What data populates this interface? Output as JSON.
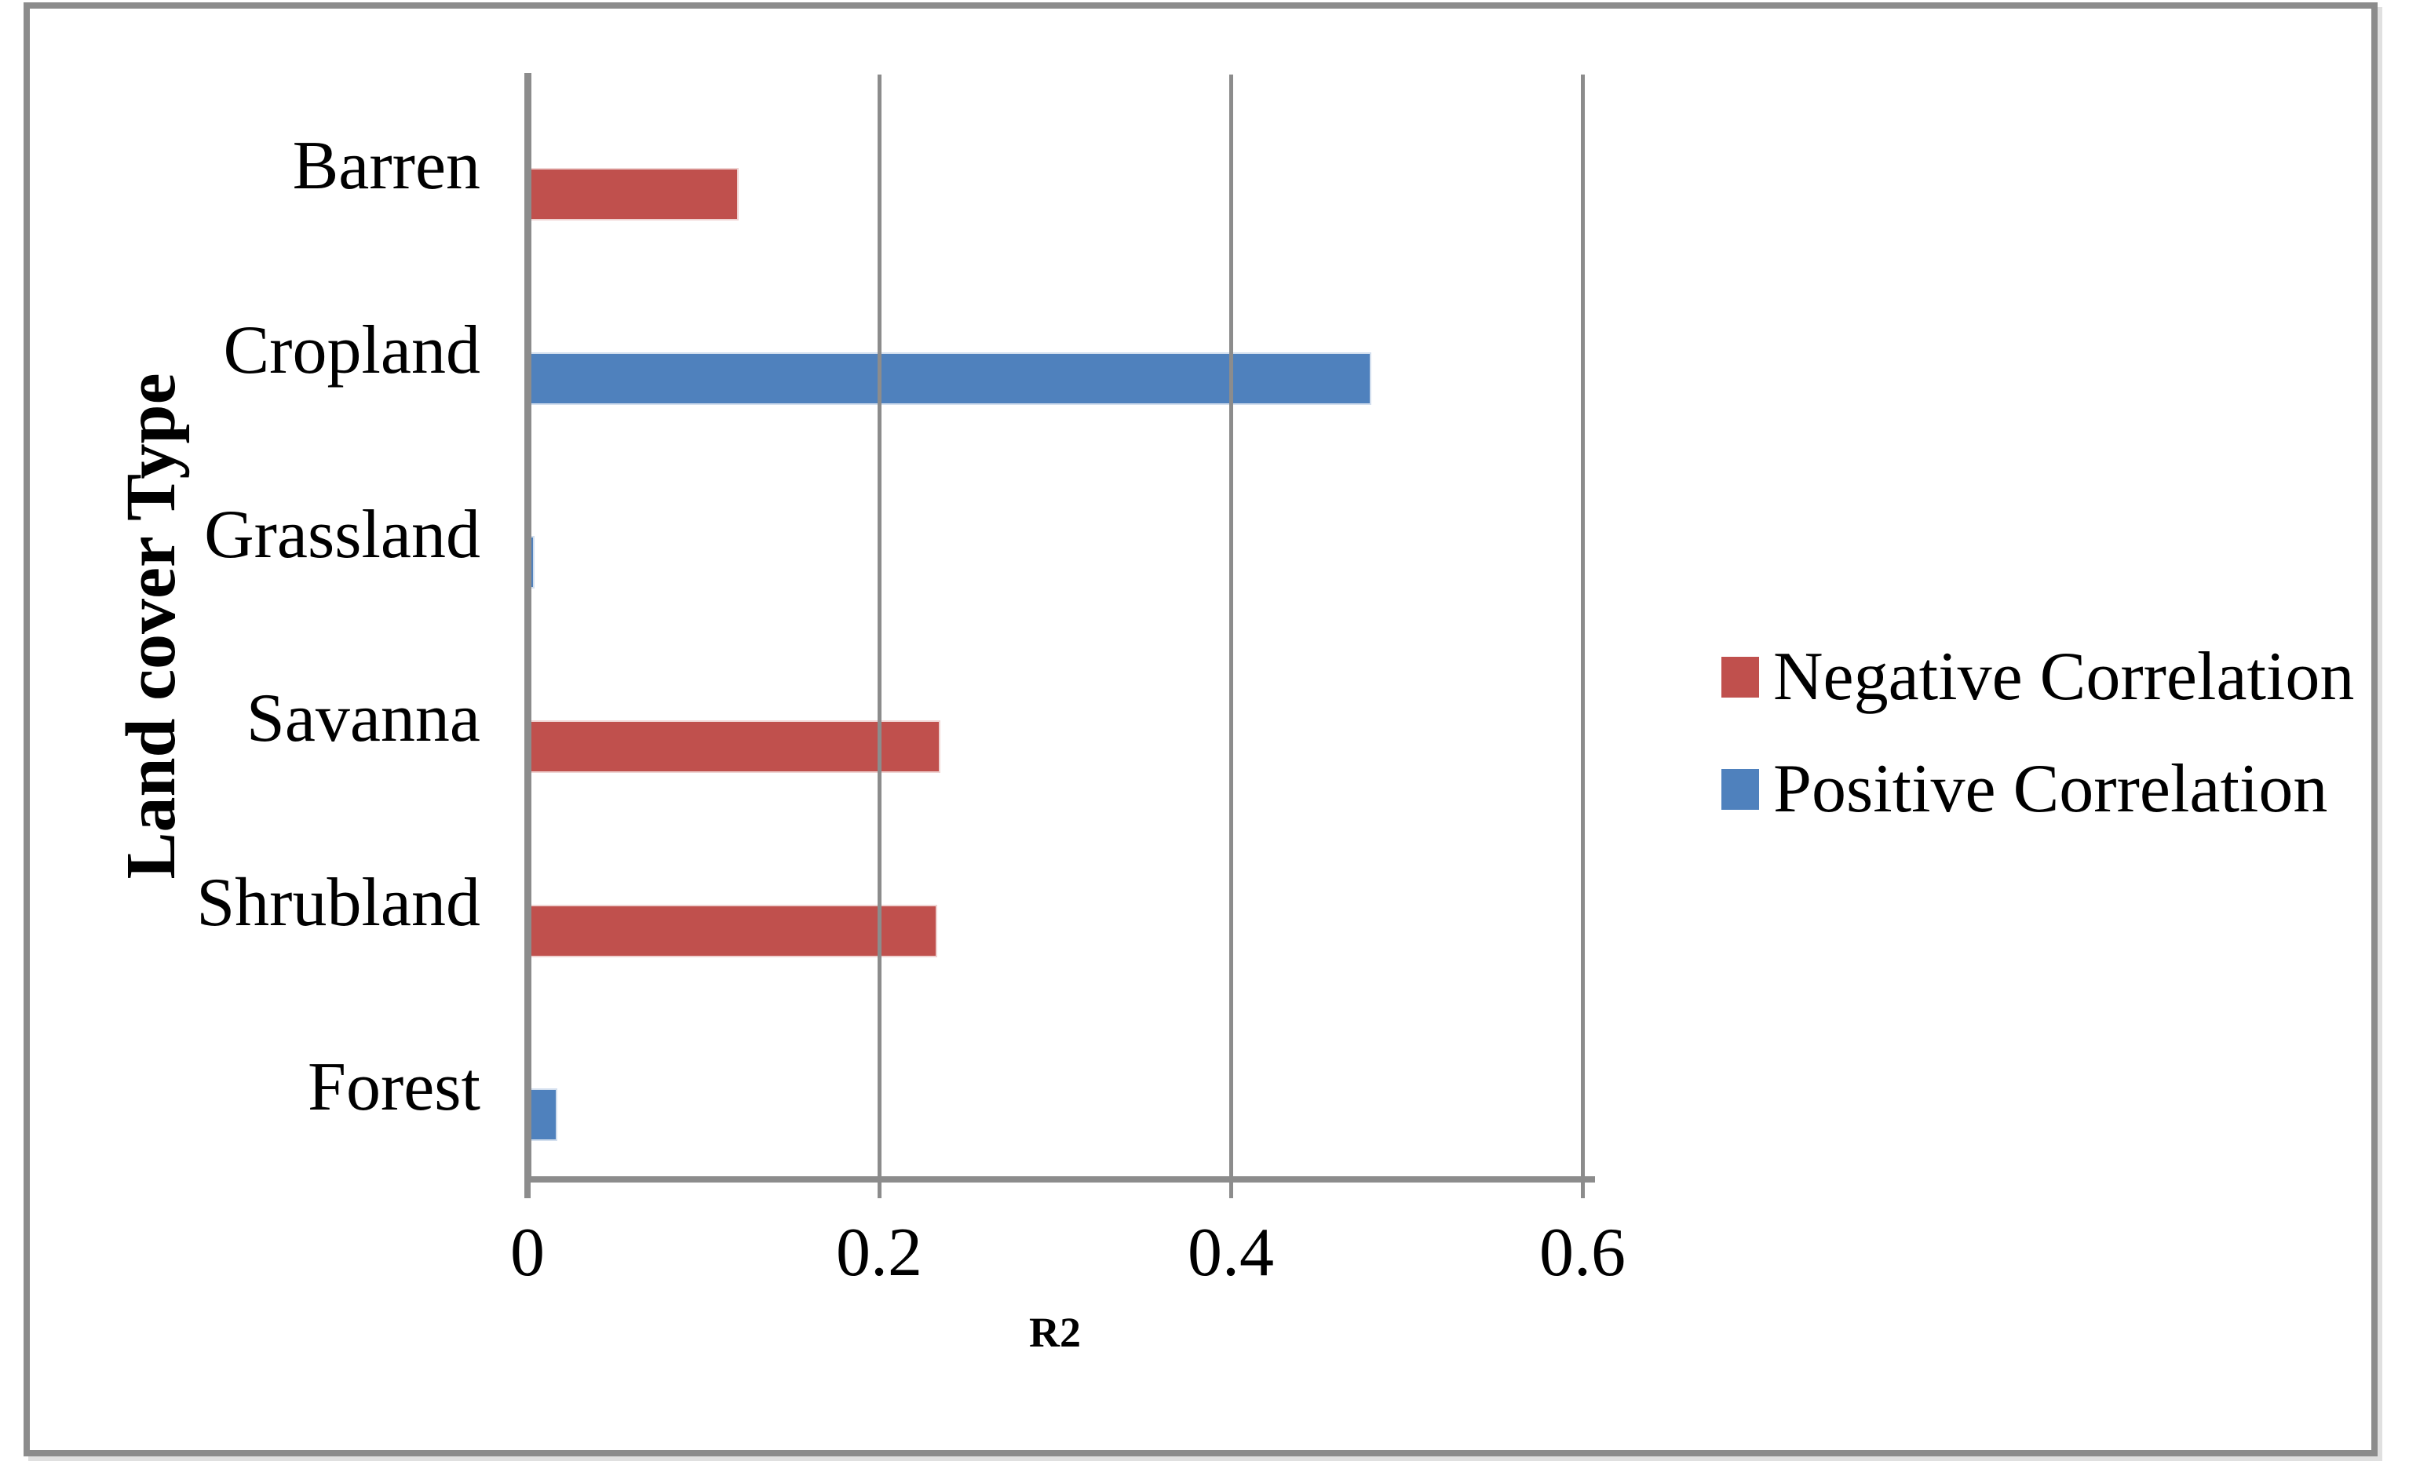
{
  "chart_data": {
    "type": "bar",
    "orientation": "horizontal",
    "title": "",
    "xlabel": "R2",
    "ylabel": "Land cover Type",
    "categories": [
      "Barren",
      "Cropland",
      "Grassland",
      "Savanna",
      "Shrubland",
      "Forest"
    ],
    "series": [
      {
        "name": "Negative Correlation",
        "color": "#C0504D",
        "values": [
          0.12,
          0,
          0,
          0.235,
          0.233,
          0
        ]
      },
      {
        "name": "Positive Correlation",
        "color": "#4F81BD",
        "values": [
          0,
          0.48,
          0.004,
          0,
          0,
          0.017
        ]
      }
    ],
    "xlim": [
      0,
      0.6
    ],
    "xticks": [
      0,
      0.2,
      0.4,
      0.6
    ],
    "xtick_labels": [
      "0",
      "0.2",
      "0.4",
      "0.6"
    ],
    "grid": "vertical-gridlines-on",
    "legend_position": "right-middle",
    "frame_color": "#8c8c8c",
    "axis_color": "#8c8c8c",
    "text_color": "#000000",
    "background_color": "#ffffff"
  }
}
